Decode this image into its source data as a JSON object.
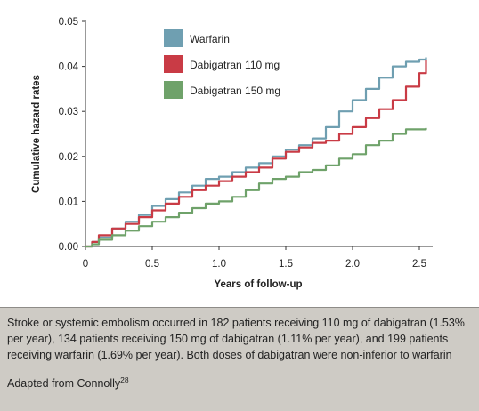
{
  "chart_data": {
    "type": "line",
    "ylabel": "Cumulative hazard rates",
    "xlabel": "Years of follow-up",
    "xlim": [
      0,
      2.6
    ],
    "ylim": [
      0,
      0.05
    ],
    "x_ticks": [
      0,
      0.5,
      1.0,
      1.5,
      2.0,
      2.5
    ],
    "x_tick_labels": [
      "0",
      "0.5",
      "1.0",
      "1.5",
      "2.0",
      "2.5"
    ],
    "y_ticks": [
      0,
      0.01,
      0.02,
      0.03,
      0.04,
      0.05
    ],
    "y_tick_labels": [
      "0.00",
      "0.01",
      "0.02",
      "0.03",
      "0.04",
      "0.05"
    ],
    "grid": false,
    "legend_position": "top-center",
    "series": [
      {
        "name": "Warfarin",
        "color": "#6f9fb1",
        "points": [
          [
            0,
            0
          ],
          [
            0.05,
            0.001
          ],
          [
            0.1,
            0.002
          ],
          [
            0.2,
            0.004
          ],
          [
            0.3,
            0.0055
          ],
          [
            0.4,
            0.007
          ],
          [
            0.5,
            0.009
          ],
          [
            0.6,
            0.0105
          ],
          [
            0.7,
            0.012
          ],
          [
            0.8,
            0.0135
          ],
          [
            0.9,
            0.015
          ],
          [
            1.0,
            0.0155
          ],
          [
            1.1,
            0.0165
          ],
          [
            1.2,
            0.0175
          ],
          [
            1.3,
            0.0185
          ],
          [
            1.4,
            0.02
          ],
          [
            1.5,
            0.0215
          ],
          [
            1.6,
            0.0225
          ],
          [
            1.7,
            0.024
          ],
          [
            1.8,
            0.0265
          ],
          [
            1.9,
            0.03
          ],
          [
            2.0,
            0.0325
          ],
          [
            2.1,
            0.035
          ],
          [
            2.2,
            0.0375
          ],
          [
            2.3,
            0.04
          ],
          [
            2.4,
            0.041
          ],
          [
            2.5,
            0.0415
          ],
          [
            2.55,
            0.042
          ]
        ]
      },
      {
        "name": "Dabigatran 110 mg",
        "color": "#c93b45",
        "points": [
          [
            0,
            0
          ],
          [
            0.05,
            0.001
          ],
          [
            0.1,
            0.0025
          ],
          [
            0.2,
            0.004
          ],
          [
            0.3,
            0.005
          ],
          [
            0.4,
            0.0065
          ],
          [
            0.5,
            0.008
          ],
          [
            0.6,
            0.0095
          ],
          [
            0.7,
            0.011
          ],
          [
            0.8,
            0.0125
          ],
          [
            0.9,
            0.0135
          ],
          [
            1.0,
            0.0145
          ],
          [
            1.1,
            0.0155
          ],
          [
            1.2,
            0.0165
          ],
          [
            1.3,
            0.0175
          ],
          [
            1.4,
            0.0195
          ],
          [
            1.5,
            0.021
          ],
          [
            1.6,
            0.022
          ],
          [
            1.7,
            0.023
          ],
          [
            1.8,
            0.0235
          ],
          [
            1.9,
            0.025
          ],
          [
            2.0,
            0.0265
          ],
          [
            2.1,
            0.0285
          ],
          [
            2.2,
            0.0305
          ],
          [
            2.3,
            0.0325
          ],
          [
            2.4,
            0.0355
          ],
          [
            2.5,
            0.0385
          ],
          [
            2.55,
            0.0415
          ]
        ]
      },
      {
        "name": "Dabigatran 150 mg",
        "color": "#6fa26a",
        "points": [
          [
            0,
            0
          ],
          [
            0.05,
            0.0005
          ],
          [
            0.1,
            0.0015
          ],
          [
            0.2,
            0.0025
          ],
          [
            0.3,
            0.0035
          ],
          [
            0.4,
            0.0045
          ],
          [
            0.5,
            0.0055
          ],
          [
            0.6,
            0.0065
          ],
          [
            0.7,
            0.0075
          ],
          [
            0.8,
            0.0085
          ],
          [
            0.9,
            0.0095
          ],
          [
            1.0,
            0.01
          ],
          [
            1.1,
            0.011
          ],
          [
            1.2,
            0.0125
          ],
          [
            1.3,
            0.014
          ],
          [
            1.4,
            0.015
          ],
          [
            1.5,
            0.0155
          ],
          [
            1.6,
            0.0165
          ],
          [
            1.7,
            0.017
          ],
          [
            1.8,
            0.018
          ],
          [
            1.9,
            0.0195
          ],
          [
            2.0,
            0.0205
          ],
          [
            2.1,
            0.0225
          ],
          [
            2.2,
            0.0235
          ],
          [
            2.3,
            0.025
          ],
          [
            2.4,
            0.026
          ],
          [
            2.5,
            0.026
          ],
          [
            2.55,
            0.0263
          ]
        ]
      }
    ]
  },
  "caption": {
    "text": "Stroke or systemic embolism occurred in 182 patients receiving 110 mg of dabigatran (1.53% per year), 134 patients receiving 150 mg of dabigatran (1.11% per year), and 199 patients receiving warfarin (1.69% per year). Both doses of dabigatran were non-inferior to warfarin",
    "source": "Adapted from Connolly",
    "source_ref": "28"
  }
}
